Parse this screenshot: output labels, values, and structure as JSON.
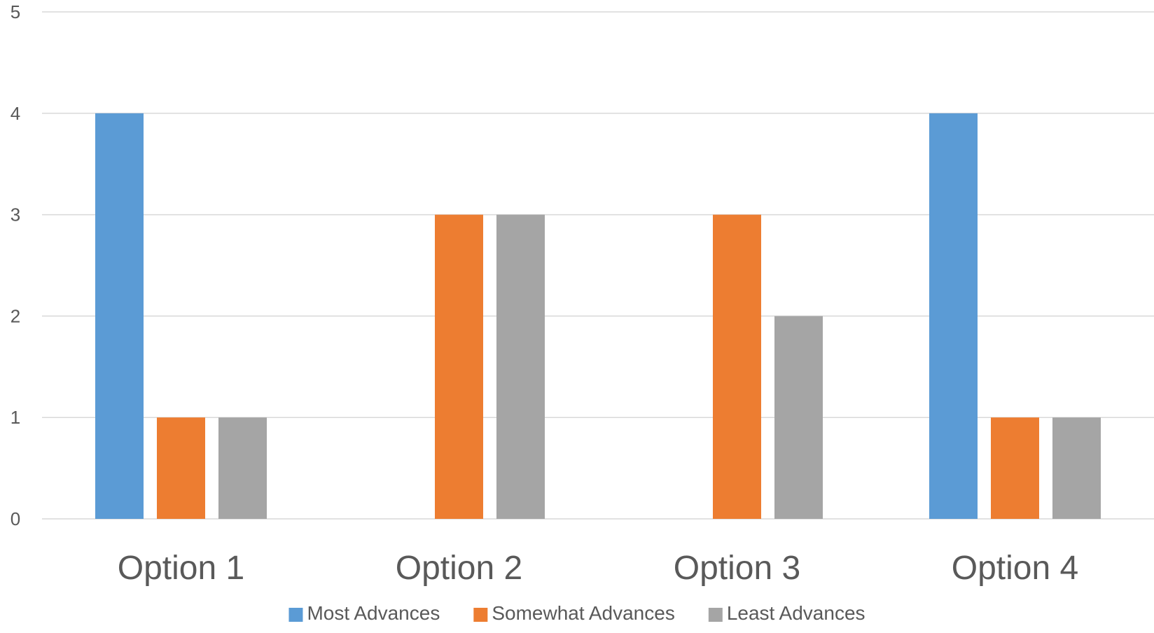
{
  "chart_data": {
    "type": "bar",
    "categories": [
      "Option 1",
      "Option 2",
      "Option 3",
      "Option 4"
    ],
    "series": [
      {
        "name": "Most Advances",
        "color": "#5b9bd5",
        "values": [
          4,
          0,
          0,
          4
        ]
      },
      {
        "name": "Somewhat Advances",
        "color": "#ed7d31",
        "values": [
          1,
          3,
          3,
          1
        ]
      },
      {
        "name": "Least Advances",
        "color": "#a5a5a5",
        "values": [
          1,
          3,
          2,
          1
        ]
      }
    ],
    "yticks": [
      "0",
      "1",
      "2",
      "3",
      "4",
      "5"
    ],
    "ylim": [
      0,
      5
    ],
    "grid": true,
    "legend_position": "bottom"
  }
}
